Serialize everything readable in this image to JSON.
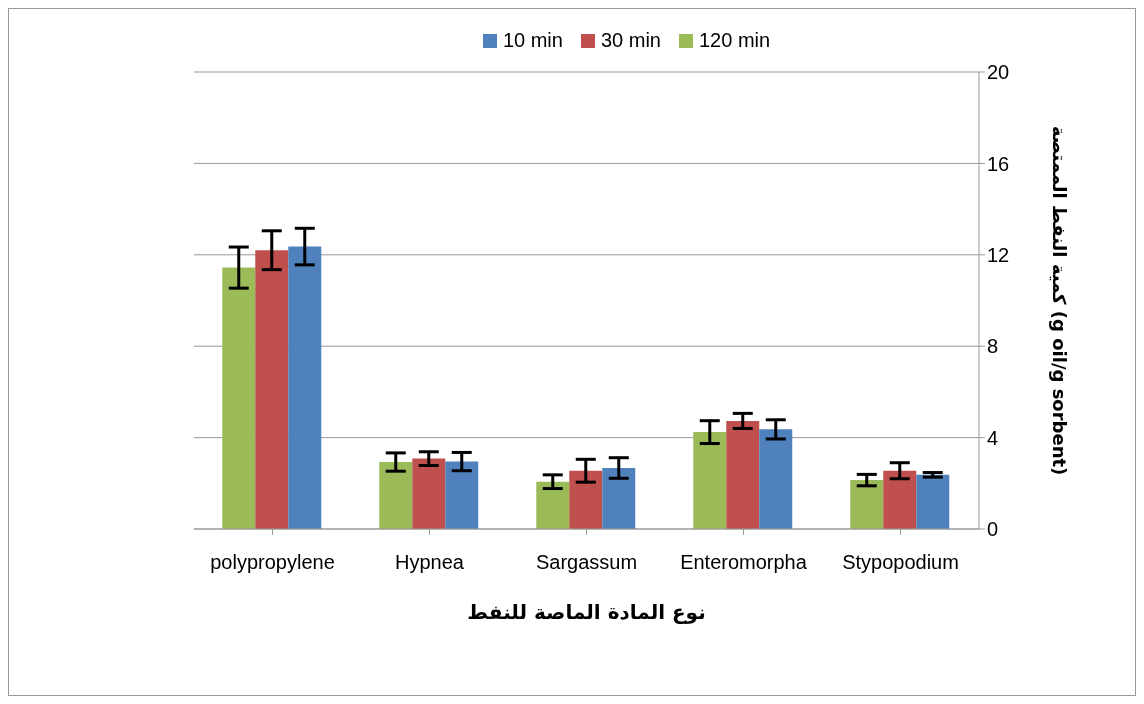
{
  "chart_data": {
    "type": "bar",
    "categories": [
      "polypropylene",
      "Hypnea",
      "Sargassum",
      "Enteromorpha",
      "Stypopodium"
    ],
    "xlabel": "نوع المادة الماصة للنفط",
    "ylabel": "كمية النفط الممتصة (g oil/g sorbent)",
    "series": [
      {
        "name": "120 min",
        "color": "#9bbb59",
        "values": [
          11.44,
          2.93,
          2.07,
          4.24,
          2.14
        ],
        "errors": [
          0.9,
          0.4,
          0.3,
          0.5,
          0.25
        ]
      },
      {
        "name": "30 min",
        "color": "#c0504d",
        "values": [
          12.2,
          3.08,
          2.55,
          4.73,
          2.55
        ],
        "errors": [
          0.85,
          0.3,
          0.5,
          0.33,
          0.35
        ]
      },
      {
        "name": "10 min",
        "color": "#4f81bd",
        "values": [
          12.36,
          2.95,
          2.67,
          4.36,
          2.37
        ],
        "errors": [
          0.8,
          0.4,
          0.45,
          0.42,
          0.1
        ]
      }
    ],
    "ylim": [
      0,
      20
    ],
    "yticks": [
      0,
      4,
      8,
      12,
      16,
      20
    ],
    "grid": "y",
    "legend": "top"
  }
}
